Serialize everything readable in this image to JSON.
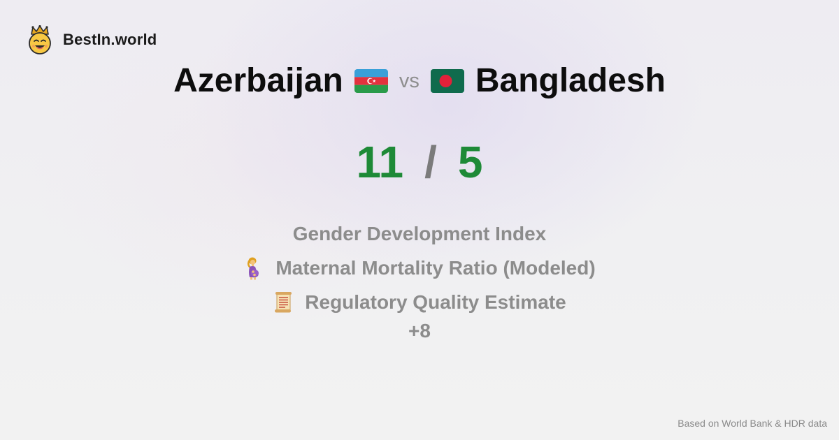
{
  "brand": {
    "name": "BestIn.world",
    "logo_icon": "crowned-smiley-icon"
  },
  "comparison": {
    "country_a": "Azerbaijan",
    "country_a_flag": "azerbaijan-flag-icon",
    "vs_label": "vs",
    "country_b": "Bangladesh",
    "country_b_flag": "bangladesh-flag-icon"
  },
  "score": {
    "a": "11",
    "separator": "/",
    "b": "5",
    "color": "#1e8a37"
  },
  "metrics": [
    {
      "label": "Gender Development Index",
      "icon": ""
    },
    {
      "label": "Maternal Mortality Ratio (Modeled)",
      "icon": "pregnant-woman-icon"
    },
    {
      "label": "Regulatory Quality Estimate",
      "icon": "scroll-icon"
    }
  ],
  "more_label": "+8",
  "footer": {
    "source": "Based on World Bank & HDR data"
  }
}
